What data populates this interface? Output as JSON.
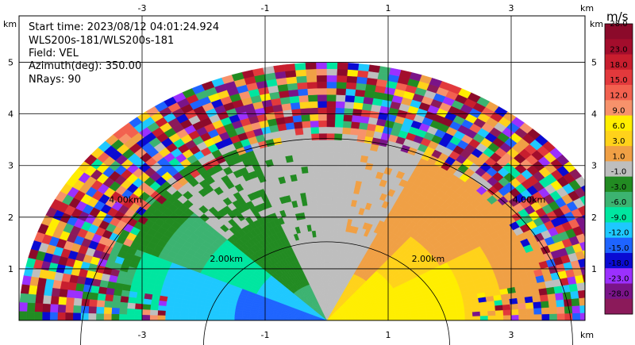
{
  "chart_data": {
    "type": "heatmap",
    "title_lines": [
      "Start time: 2023/08/12 04:01:24.924",
      "WLS200s-181/WLS200s-181",
      "Field: VEL",
      "Azimuth(deg): 350.00",
      "NRays: 90"
    ],
    "x_unit": "km",
    "y_unit": "km",
    "x_ticks": [
      "-3",
      "-1",
      "1",
      "3"
    ],
    "x_tick_values": [
      -3,
      -1,
      1,
      3
    ],
    "y_ticks": [
      "1",
      "2",
      "3",
      "4",
      "5"
    ],
    "y_tick_values": [
      1,
      2,
      3,
      4,
      5
    ],
    "xlim": [
      -5.0,
      4.2
    ],
    "ylim": [
      0,
      5.9
    ],
    "grid": true,
    "range_rings": [
      {
        "radius_km": 2.0,
        "label": "2.00km"
      },
      {
        "radius_km": 4.0,
        "label": "4.00km"
      }
    ],
    "max_range_km": 5.0,
    "colorbar": {
      "unit": "m/s",
      "tick_labels": [
        "28.0",
        "23.0",
        "18.0",
        "15.0",
        "12.0",
        "9.0",
        "6.0",
        "3.0",
        "1.0",
        "-1.0",
        "-3.0",
        "-6.0",
        "-9.0",
        "-12.0",
        "-15.0",
        "-18.0",
        "-23.0",
        "-28.0"
      ],
      "colors": [
        "#8b0a2a",
        "#a30d2c",
        "#c81e2e",
        "#e2393c",
        "#f2614f",
        "#f7926b",
        "#ffee00",
        "#ffd21a",
        "#f0a045",
        "#bebebe",
        "#228b22",
        "#3cb371",
        "#00e6a0",
        "#1ec8ff",
        "#1e64ff",
        "#0a0ad2",
        "#9b30ff",
        "#7a1488",
        "#8b1a5a"
      ]
    },
    "field_summary": {
      "left_near_values_ms": [
        -15.0,
        -12.0,
        -9.0,
        -6.0,
        -3.0
      ],
      "right_near_values_ms": [
        1.0,
        3.0,
        6.0
      ],
      "center_value_ms": 0.0
    }
  }
}
